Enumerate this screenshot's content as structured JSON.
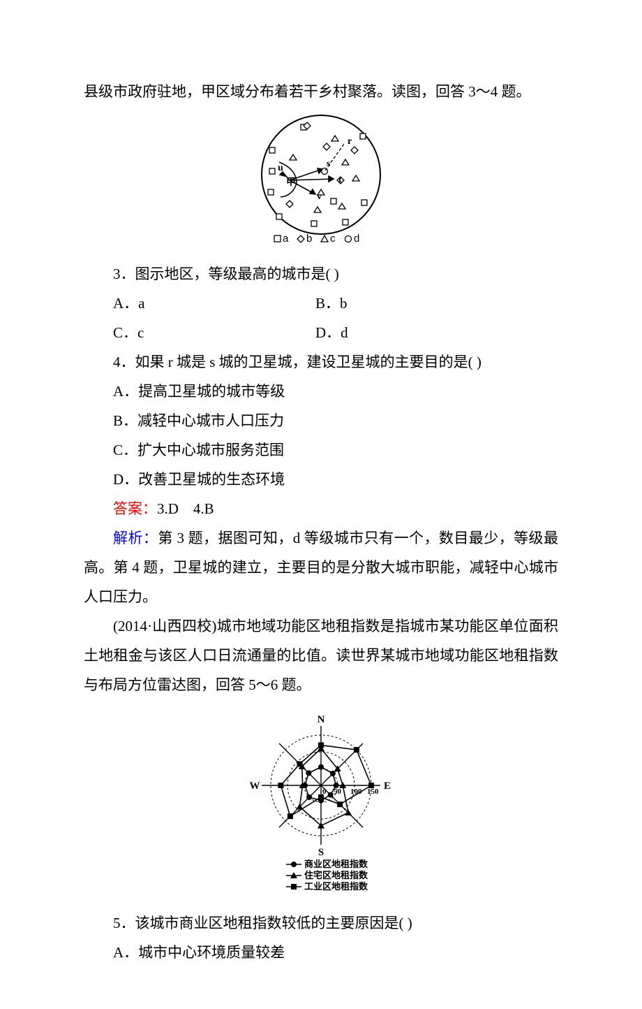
{
  "intro_text": "县级市政府驻地，甲区域分布着若干乡村聚落。读图，回答 3～4 题。",
  "figure1": {
    "circle_r": 85,
    "stroke": "#000000",
    "stroke_width": 2,
    "background": "#ffffff",
    "legend": [
      {
        "symbol": "square",
        "label": "a"
      },
      {
        "symbol": "diamond",
        "label": "b"
      },
      {
        "symbol": "triangle",
        "label": "c"
      },
      {
        "symbol": "circle",
        "label": "d"
      }
    ],
    "labels": {
      "r": "r",
      "s": "s",
      "t": "t",
      "u": "u",
      "v": "v",
      "甲": "甲"
    },
    "markers": {
      "squares": [
        [
          -70,
          -35
        ],
        [
          -70,
          -5
        ],
        [
          -72,
          25
        ],
        [
          -60,
          60
        ],
        [
          -25,
          -68
        ],
        [
          60,
          -55
        ],
        [
          18,
          38
        ],
        [
          -10,
          70
        ],
        [
          35,
          68
        ],
        [
          62,
          40
        ]
      ],
      "diamonds": [
        [
          -20,
          -70
        ],
        [
          48,
          -35
        ],
        [
          8,
          -40
        ],
        [
          28,
          8
        ],
        [
          -45,
          42
        ]
      ],
      "triangles": [
        [
          -40,
          -25
        ],
        [
          20,
          -52
        ],
        [
          35,
          -18
        ],
        [
          50,
          5
        ],
        [
          0,
          25
        ],
        [
          30,
          45
        ],
        [
          -5,
          50
        ]
      ],
      "circles_d": [
        [
          5,
          -5
        ]
      ],
      "r_pos": [
        35,
        -45
      ],
      "s_pos": [
        10,
        -8
      ],
      "t_pos": [
        22,
        5
      ],
      "u_pos": [
        -55,
        -5
      ],
      "v_pos": [
        -5,
        30
      ],
      "甲_pos": [
        -48,
        10
      ]
    }
  },
  "q3": {
    "stem": "3．图示地区，等级最高的城市是(       )",
    "A": "A．a",
    "B": "B．b",
    "C": "C．c",
    "D": "D．d"
  },
  "q4": {
    "stem": "4．如果 r 城是 s 城的卫星城，建设卫星城的主要目的是(       )",
    "A": "A．提高卫星城的城市等级",
    "B": "B．减轻中心城市人口压力",
    "C": "C．扩大中心城市服务范围",
    "D": "D．改善卫星城的生态环境"
  },
  "answer34_label": "答案：",
  "answer34_value": "3.D　4.B",
  "analysis34_label": "解析：",
  "analysis34_text": "第 3 题，据图可知，d 等级城市只有一个，数目最少，等级最高。第 4 题，卫星城的建立，主要目的是分散大城市职能，减轻中心城市人口压力。",
  "intro56": "(2014·山西四校)城市地域功能区地租指数是指城市某功能区单位面积土地租金与该区人口日流通量的比值。读世界某城市地域功能区地租指数与布局方位雷达图，回答 5～6 题。",
  "figure2": {
    "type": "radar",
    "axes": [
      "N",
      "NE",
      "E",
      "SE",
      "S",
      "SW",
      "W",
      "NW"
    ],
    "axis_labels": {
      "N": "N",
      "E": "E",
      "S": "S",
      "W": "W"
    },
    "rings": [
      50,
      100,
      150
    ],
    "ring_labels": [
      "0",
      "50",
      "100",
      "150"
    ],
    "ring_label_fontsize": 11,
    "axis_label_fontsize": 15,
    "legend_fontsize": 13,
    "stroke": "#000000",
    "background": "#ffffff",
    "series": [
      {
        "name": "商业区地租指数",
        "marker": "circle",
        "stroke": "#000000",
        "stroke_width": 1.6,
        "values": [
          55,
          50,
          45,
          40,
          45,
          50,
          48,
          52
        ]
      },
      {
        "name": "住宅区地租指数",
        "marker": "triangle",
        "stroke": "#000000",
        "stroke_width": 1.6,
        "values": [
          110,
          70,
          65,
          115,
          120,
          90,
          55,
          80
        ]
      },
      {
        "name": "工业区地租指数",
        "marker": "square",
        "stroke": "#000000",
        "stroke_width": 1.6,
        "values": [
          120,
          150,
          150,
          80,
          35,
          130,
          120,
          90
        ]
      }
    ]
  },
  "q5": {
    "stem": "5．该城市商业区地租指数较低的主要原因是(       )",
    "A": "A．城市中心环境质量较差"
  }
}
